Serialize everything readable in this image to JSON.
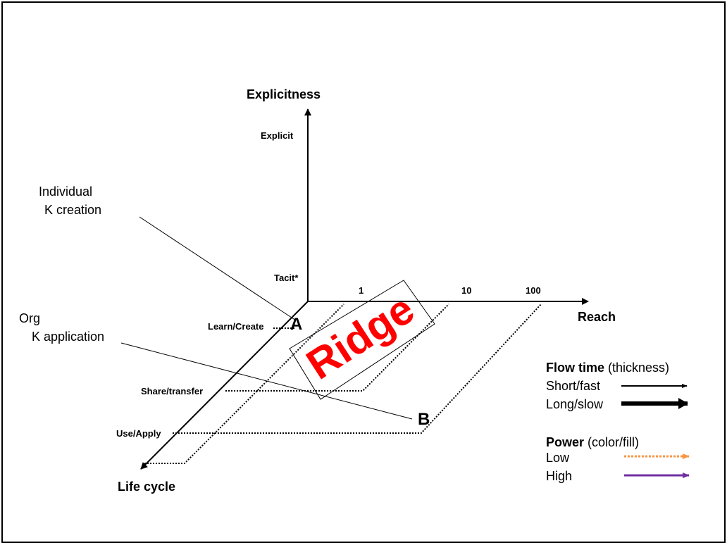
{
  "axes": {
    "vertical": {
      "label": "Explicitness",
      "ticks": [
        "Explicit",
        "Tacit*"
      ]
    },
    "horizontal": {
      "label": "Reach",
      "ticks": [
        "1",
        "10",
        "100"
      ]
    },
    "depth": {
      "label": "Life cycle",
      "ticks": [
        "Learn/Create",
        "Share/transfer",
        "Use/Apply"
      ]
    }
  },
  "annotations": [
    "Individual\nK creation",
    "Org\nK application"
  ],
  "points": [
    "A",
    "B"
  ],
  "region": "Ridge",
  "legend": {
    "flow": {
      "title": "Flow time",
      "note": "(thickness)",
      "items": [
        "Short/fast",
        "Long/slow"
      ]
    },
    "power": {
      "title": "Power",
      "note": "(color/fill)",
      "items": [
        "Low",
        "High"
      ]
    }
  }
}
